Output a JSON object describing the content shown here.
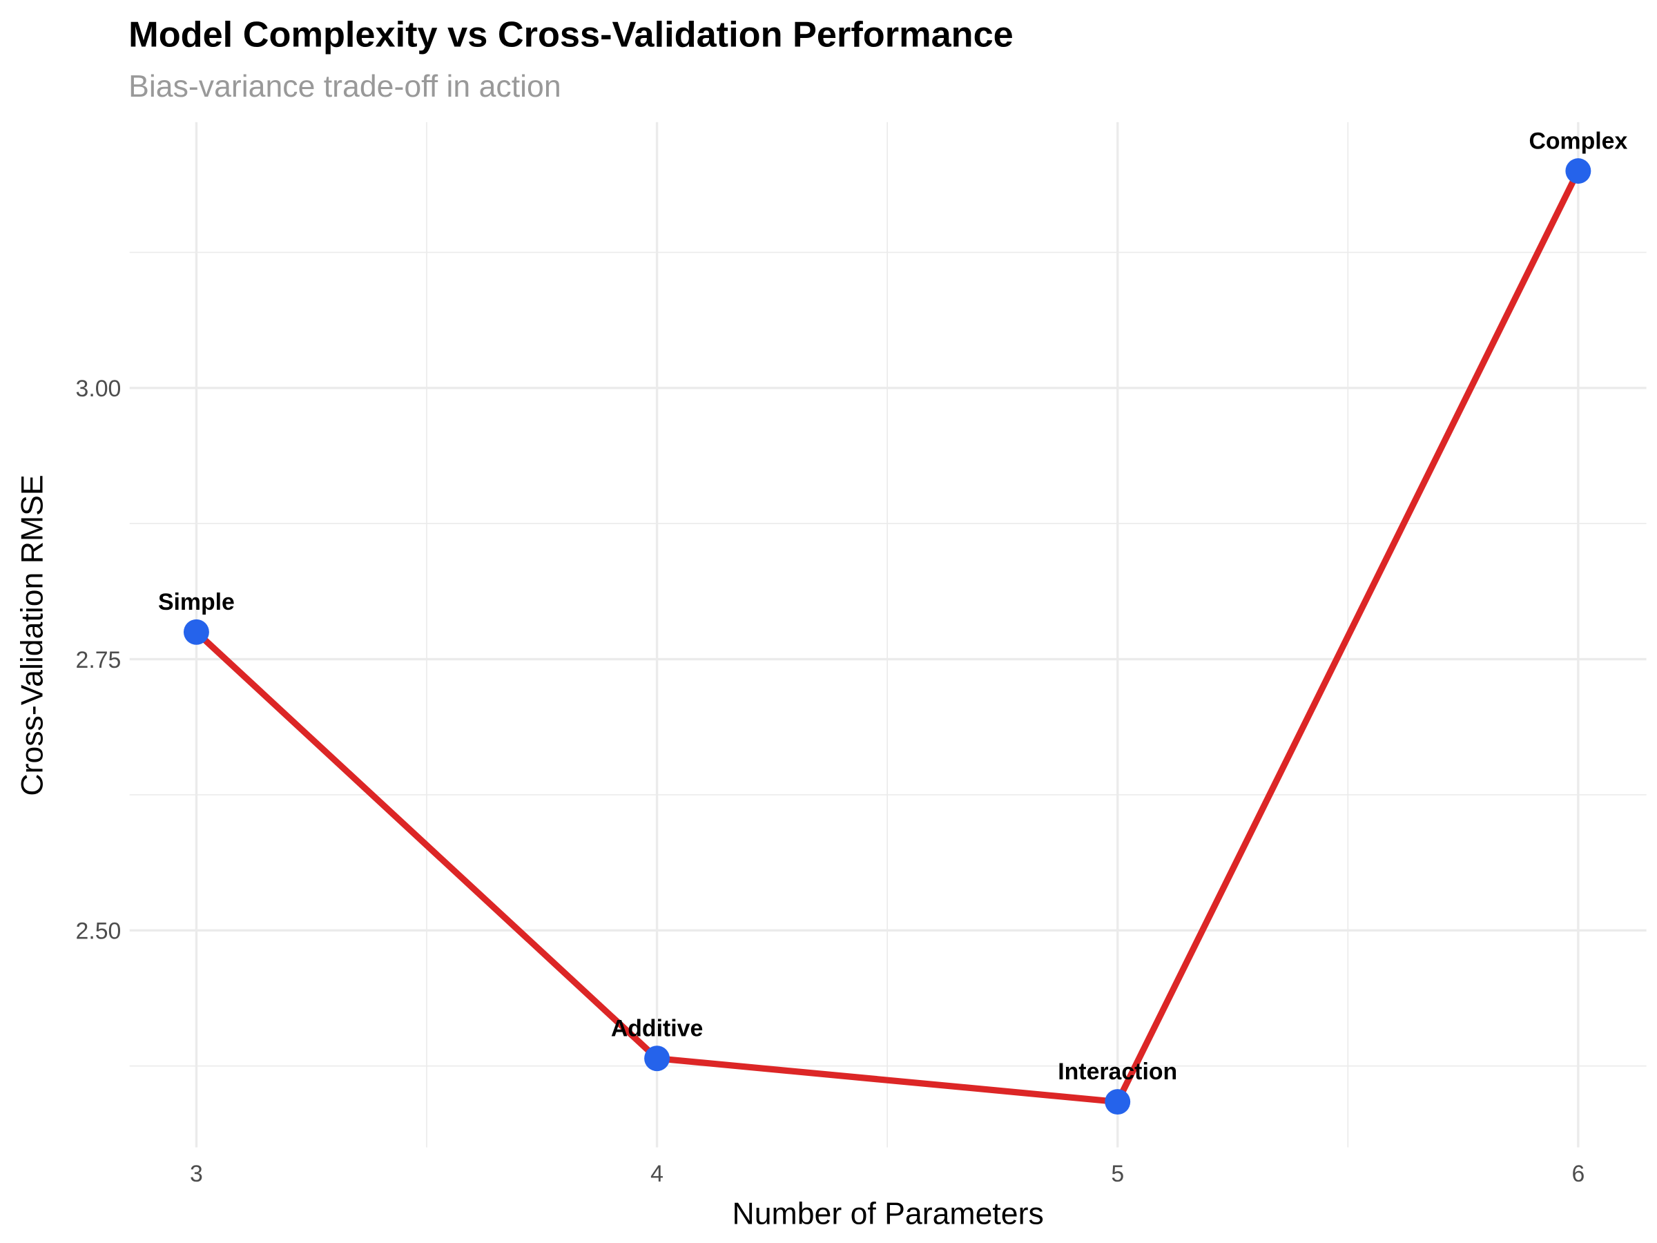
{
  "chart_data": {
    "type": "line",
    "title": "Model Complexity vs Cross-Validation Performance",
    "subtitle": "Bias-variance trade-off in action",
    "xlabel": "Number of Parameters",
    "ylabel": "Cross-Validation RMSE",
    "xlim": [
      2.855,
      6.148
    ],
    "ylim": [
      2.3,
      3.245
    ],
    "x_ticks": [
      3,
      4,
      5,
      6
    ],
    "x_tick_labels": [
      "3",
      "4",
      "5",
      "6"
    ],
    "y_ticks": [
      2.5,
      2.75,
      3.0
    ],
    "y_tick_labels": [
      "2.50",
      "2.75",
      "3.00"
    ],
    "grid": true,
    "points": [
      {
        "x": 3,
        "y": 2.775,
        "label": "Simple"
      },
      {
        "x": 4,
        "y": 2.382,
        "label": "Additive"
      },
      {
        "x": 5,
        "y": 2.342,
        "label": "Interaction"
      },
      {
        "x": 6,
        "y": 3.2,
        "label": "Complex"
      }
    ],
    "colors": {
      "line": "#dc2626",
      "point": "#2563eb"
    }
  }
}
